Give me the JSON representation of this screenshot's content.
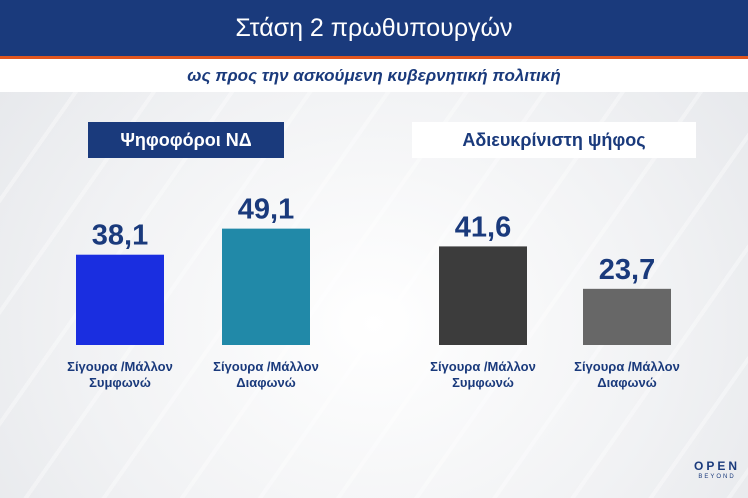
{
  "header": {
    "title": "Στάση 2 πρωθυπουργών",
    "subtitle": "ως προς την ασκούμενη κυβερνητική πολιτική"
  },
  "groups": [
    {
      "label": "Ψηφοφόροι ΝΔ"
    },
    {
      "label": "Αδιευκρίνιστη ψήφος"
    }
  ],
  "logo": {
    "line1": "OPEN",
    "line2": "BEYOND"
  },
  "colors": {
    "navy": "#1a3a7c",
    "orange": "#e2561f",
    "nd_agree": "#1a2ee0",
    "nd_disagree": "#2189a8",
    "und_agree": "#3c3c3c",
    "und_disagree": "#676767"
  },
  "chart_data": {
    "type": "bar",
    "title": "Στάση 2 πρωθυπουργών",
    "subtitle": "ως προς την ασκούμενη κυβερνητική πολιτική",
    "ylim": [
      0,
      60
    ],
    "bars": [
      {
        "group": "Ψηφοφόροι ΝΔ",
        "label": [
          "Σίγουρα /Μάλλον",
          "Συμφωνώ"
        ],
        "value": 38.1,
        "display": "38,1",
        "color": "#1a2ee0"
      },
      {
        "group": "Ψηφοφόροι ΝΔ",
        "label": [
          "Σίγουρα /Μάλλον",
          "Διαφωνώ"
        ],
        "value": 49.1,
        "display": "49,1",
        "color": "#2189a8"
      },
      {
        "group": "Αδιευκρίνιστη ψήφος",
        "label": [
          "Σίγουρα /Μάλλον",
          "Συμφωνώ"
        ],
        "value": 41.6,
        "display": "41,6",
        "color": "#3c3c3c"
      },
      {
        "group": "Αδιευκρίνιστη ψήφος",
        "label": [
          "Σίγουρα /Μάλλον",
          "Διαφωνώ"
        ],
        "value": 23.7,
        "display": "23,7",
        "color": "#676767"
      }
    ]
  }
}
